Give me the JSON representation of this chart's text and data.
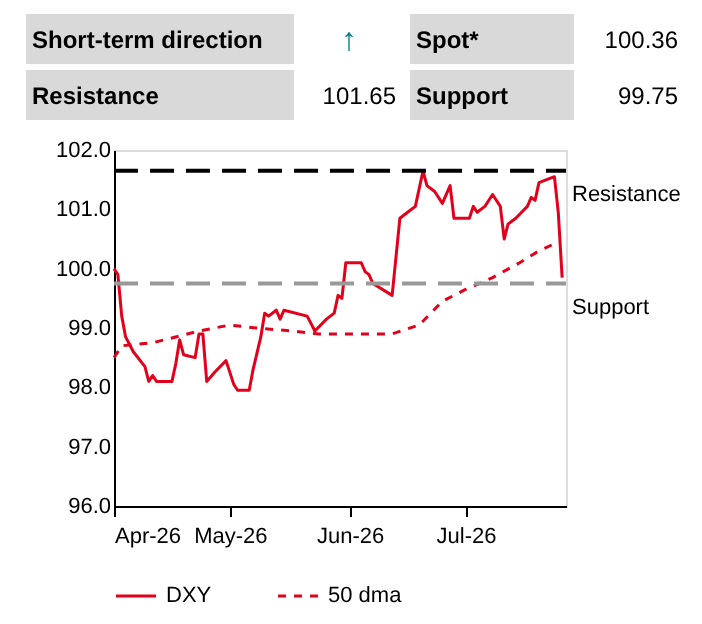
{
  "chart_data": {
    "type": "line",
    "annotations": [
      "Short-term direction",
      "↑",
      "Spot*",
      "100.36",
      "Resistance",
      "101.65",
      "Support",
      "99.75"
    ],
    "xlim": [
      "2026-04-01",
      "2026-07-27"
    ],
    "xticks": [
      {
        "value": "2026-04-01",
        "label": "Apr-26"
      },
      {
        "value": "2026-05-01",
        "label": "May-26"
      },
      {
        "value": "2026-06-01",
        "label": "Jun-26"
      },
      {
        "value": "2026-07-01",
        "label": "Jul-26"
      }
    ],
    "ylim": [
      96,
      102
    ],
    "yticks": [
      {
        "value": 96,
        "label": "96.0"
      },
      {
        "value": 97,
        "label": "97.0"
      },
      {
        "value": 98,
        "label": "98.0"
      },
      {
        "value": 99,
        "label": "99.0"
      },
      {
        "value": 100,
        "label": "100.0"
      },
      {
        "value": 101,
        "label": "101.0"
      },
      {
        "value": 102,
        "label": "102.0"
      }
    ],
    "grid": false,
    "legend": "bottom",
    "marker": "none",
    "ref_lines": [
      {
        "axis": "y",
        "value": 101.65,
        "label": "Resistance",
        "color": "#000000",
        "line_style": "dashed"
      },
      {
        "axis": "y",
        "value": 99.75,
        "label": "Support",
        "color": "#999999",
        "line_style": "dashed"
      }
    ],
    "series": [
      {
        "name": "DXY",
        "color": "#e3001b",
        "line_style": "solid",
        "x": [
          "2026-04-01",
          "2026-04-02",
          "2026-04-03",
          "2026-04-04",
          "2026-04-06",
          "2026-04-09",
          "2026-04-10",
          "2026-04-11",
          "2026-04-12",
          "2026-04-16",
          "2026-04-17",
          "2026-04-18",
          "2026-04-19",
          "2026-04-22",
          "2026-04-23",
          "2026-04-24",
          "2026-04-25",
          "2026-04-27",
          "2026-04-30",
          "2026-05-02",
          "2026-05-03",
          "2026-05-06",
          "2026-05-07",
          "2026-05-09",
          "2026-05-10",
          "2026-05-11",
          "2026-05-13",
          "2026-05-14",
          "2026-05-15",
          "2026-05-21",
          "2026-05-23",
          "2026-05-26",
          "2026-05-28",
          "2026-05-29",
          "2026-05-30",
          "2026-05-31",
          "2026-06-04",
          "2026-06-05",
          "2026-06-06",
          "2026-06-07",
          "2026-06-12",
          "2026-06-14",
          "2026-06-16",
          "2026-06-18",
          "2026-06-20",
          "2026-06-21",
          "2026-06-23",
          "2026-06-25",
          "2026-06-27",
          "2026-06-28",
          "2026-07-02",
          "2026-07-03",
          "2026-07-04",
          "2026-07-06",
          "2026-07-08",
          "2026-07-10",
          "2026-07-11",
          "2026-07-12",
          "2026-07-14",
          "2026-07-17",
          "2026-07-18",
          "2026-07-19",
          "2026-07-20",
          "2026-07-22",
          "2026-07-24",
          "2026-07-25",
          "2026-07-26"
        ],
        "values": [
          100.0,
          99.9,
          99.2,
          98.85,
          98.6,
          98.35,
          98.1,
          98.2,
          98.1,
          98.1,
          98.4,
          98.8,
          98.55,
          98.5,
          98.9,
          98.9,
          98.1,
          98.25,
          98.45,
          98.05,
          97.95,
          97.95,
          98.3,
          98.85,
          99.25,
          99.2,
          99.3,
          99.15,
          99.3,
          99.2,
          98.95,
          99.15,
          99.25,
          99.55,
          99.5,
          100.1,
          100.1,
          99.95,
          99.9,
          99.75,
          99.55,
          100.85,
          100.95,
          101.05,
          101.65,
          101.4,
          101.3,
          101.1,
          101.4,
          100.85,
          100.85,
          101.05,
          100.95,
          101.05,
          101.25,
          101.05,
          100.5,
          100.75,
          100.85,
          101.05,
          101.2,
          101.15,
          101.45,
          101.5,
          101.55,
          100.95,
          99.85
        ]
      },
      {
        "name": "50 dma",
        "color": "#e3001b",
        "line_style": "dashed",
        "x": [
          "2026-04-01",
          "2026-04-03",
          "2026-04-11",
          "2026-04-23",
          "2026-05-01",
          "2026-05-08",
          "2026-05-17",
          "2026-05-24",
          "2026-06-04",
          "2026-06-12",
          "2026-06-19",
          "2026-06-25",
          "2026-07-01",
          "2026-07-08",
          "2026-07-15",
          "2026-07-20",
          "2026-07-25"
        ],
        "values": [
          98.5,
          98.7,
          98.75,
          98.95,
          99.05,
          99.0,
          98.95,
          98.9,
          98.9,
          98.9,
          99.05,
          99.45,
          99.65,
          99.85,
          100.1,
          100.3,
          100.45
        ]
      }
    ]
  }
}
